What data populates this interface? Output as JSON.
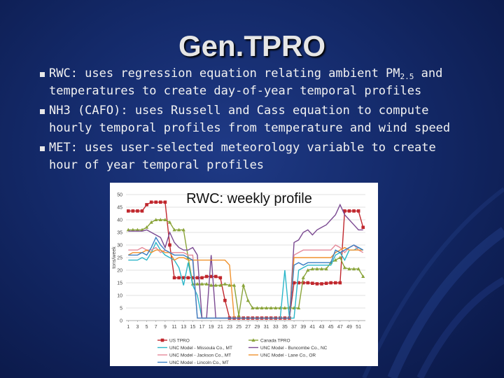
{
  "title": "Gen.TPRO",
  "bullets": [
    [
      "RWC: uses regression equation relating ambient PM",
      "2.5",
      " and temperatures to create day-of-year temporal profiles"
    ],
    [
      "NH3 (CAFO): uses Russell and Cass equation to compute hourly temporal profiles from temperature and wind speed"
    ],
    [
      "MET: uses user-selected meteorology variable to create hour of year temporal profiles"
    ]
  ],
  "chart_data": {
    "type": "line",
    "title": "RWC: weekly profile",
    "y_label": "tons/week",
    "grid": true,
    "x": [
      1,
      2,
      3,
      4,
      5,
      6,
      7,
      8,
      9,
      10,
      11,
      12,
      13,
      14,
      15,
      16,
      17,
      18,
      19,
      20,
      21,
      22,
      23,
      24,
      25,
      26,
      27,
      28,
      29,
      30,
      31,
      32,
      33,
      34,
      35,
      36,
      37,
      38,
      39,
      40,
      41,
      42,
      43,
      44,
      45,
      46,
      47,
      48,
      49,
      50,
      51,
      52
    ],
    "xlim": [
      0.5,
      52.5
    ],
    "xticks": [
      1,
      3,
      5,
      7,
      9,
      11,
      13,
      15,
      17,
      19,
      21,
      23,
      25,
      27,
      29,
      31,
      33,
      35,
      37,
      39,
      41,
      43,
      45,
      47,
      49,
      51
    ],
    "ylim": [
      0,
      50
    ],
    "yticks": [
      0,
      5,
      10,
      15,
      20,
      25,
      30,
      35,
      40,
      45,
      50
    ],
    "series": [
      {
        "name": "US TPRO",
        "color": "#c0272d",
        "marker": "square",
        "values": [
          43.5,
          43.5,
          43.5,
          43.5,
          46,
          47,
          47,
          47,
          47,
          30,
          17,
          17,
          17,
          17,
          17,
          17,
          17,
          17.5,
          17.5,
          17.5,
          17,
          8,
          1,
          1,
          1,
          1,
          1,
          1,
          1,
          1,
          1,
          1,
          1,
          1,
          1,
          1,
          15,
          15,
          15,
          15,
          14.8,
          14.6,
          14.6,
          14.8,
          15,
          15,
          15,
          43.5,
          43.5,
          43.5,
          43.5,
          37
        ]
      },
      {
        "name": "Canada TPRO",
        "color": "#8aa43a",
        "marker": "triangle",
        "values": [
          36,
          36,
          36,
          36,
          37,
          39,
          40,
          40,
          40,
          39,
          36,
          36,
          36,
          25,
          14.5,
          14.5,
          14.5,
          14.5,
          14,
          14,
          14,
          14.5,
          14,
          14,
          2,
          14,
          8,
          5,
          5,
          5,
          5,
          5,
          5,
          5,
          5,
          5,
          5,
          5,
          17,
          20,
          20.5,
          20.5,
          20.5,
          20.5,
          23,
          24,
          25,
          21,
          20.5,
          20.5,
          20.5,
          17.5
        ]
      },
      {
        "name": "UNC Model - Missoula Co., MT",
        "color": "#2bb6c9",
        "values": [
          24,
          24,
          24,
          25,
          24,
          27,
          31,
          28,
          26,
          25,
          24,
          21,
          14,
          23,
          14,
          10,
          1,
          1,
          1,
          1,
          1,
          1,
          1,
          1,
          1,
          1,
          1,
          1,
          1,
          1,
          1,
          1,
          1,
          1,
          20,
          1,
          1,
          20,
          21,
          22,
          22,
          22,
          22,
          22,
          22,
          26,
          27,
          24,
          28,
          28,
          29,
          28
        ]
      },
      {
        "name": "UNC Model - Buncombe Co., NC",
        "color": "#7b4a92",
        "values": [
          35.5,
          35.5,
          35.5,
          35.5,
          36,
          35,
          34,
          33,
          29,
          35,
          31,
          29,
          28,
          28,
          29,
          26,
          1,
          1,
          26,
          1,
          1,
          1,
          1,
          1,
          1,
          1,
          1,
          1,
          1,
          1,
          1,
          1,
          1,
          1,
          1,
          1,
          31,
          32,
          35,
          36,
          34,
          36,
          37,
          38,
          40,
          42,
          46,
          42,
          40,
          38,
          36,
          36
        ]
      },
      {
        "name": "UNC Model - Jackson Co., MT",
        "color": "#e58a9a",
        "values": [
          28,
          28,
          28,
          29,
          28,
          28,
          29,
          27,
          28,
          27,
          27,
          27,
          27,
          26,
          26,
          1,
          1,
          1,
          1,
          1,
          1,
          1,
          1,
          1,
          1,
          1,
          1,
          1,
          1,
          1,
          1,
          1,
          1,
          1,
          1,
          1,
          26,
          27,
          28,
          28,
          28,
          28,
          28,
          28,
          28,
          30,
          29,
          27,
          29,
          30,
          28,
          27
        ]
      },
      {
        "name": "UNC Model - Lane Co., OR",
        "color": "#f0922e",
        "values": [
          26,
          27,
          27,
          27,
          28,
          27,
          28,
          28,
          27,
          27,
          24,
          25,
          25,
          24,
          24,
          24,
          24,
          24,
          24,
          24,
          24,
          24,
          22,
          1,
          1,
          1,
          1,
          1,
          1,
          1,
          1,
          1,
          1,
          1,
          1,
          1,
          25,
          25,
          25,
          25,
          25,
          25,
          25,
          25,
          25,
          27,
          28,
          29,
          28,
          28,
          28,
          28
        ]
      },
      {
        "name": "UNC Model - Lincoln Co., MT",
        "color": "#3a7fc4",
        "values": [
          26,
          26,
          26,
          27,
          26,
          29,
          33,
          30,
          28,
          27,
          26,
          26,
          26,
          25,
          24,
          1,
          1,
          1,
          1,
          1,
          1,
          1,
          1,
          1,
          1,
          1,
          1,
          1,
          1,
          1,
          1,
          1,
          1,
          1,
          1,
          1,
          22,
          23,
          22,
          23,
          23,
          23,
          23,
          23,
          23,
          28,
          27,
          28,
          29,
          30,
          29,
          28
        ]
      }
    ]
  }
}
